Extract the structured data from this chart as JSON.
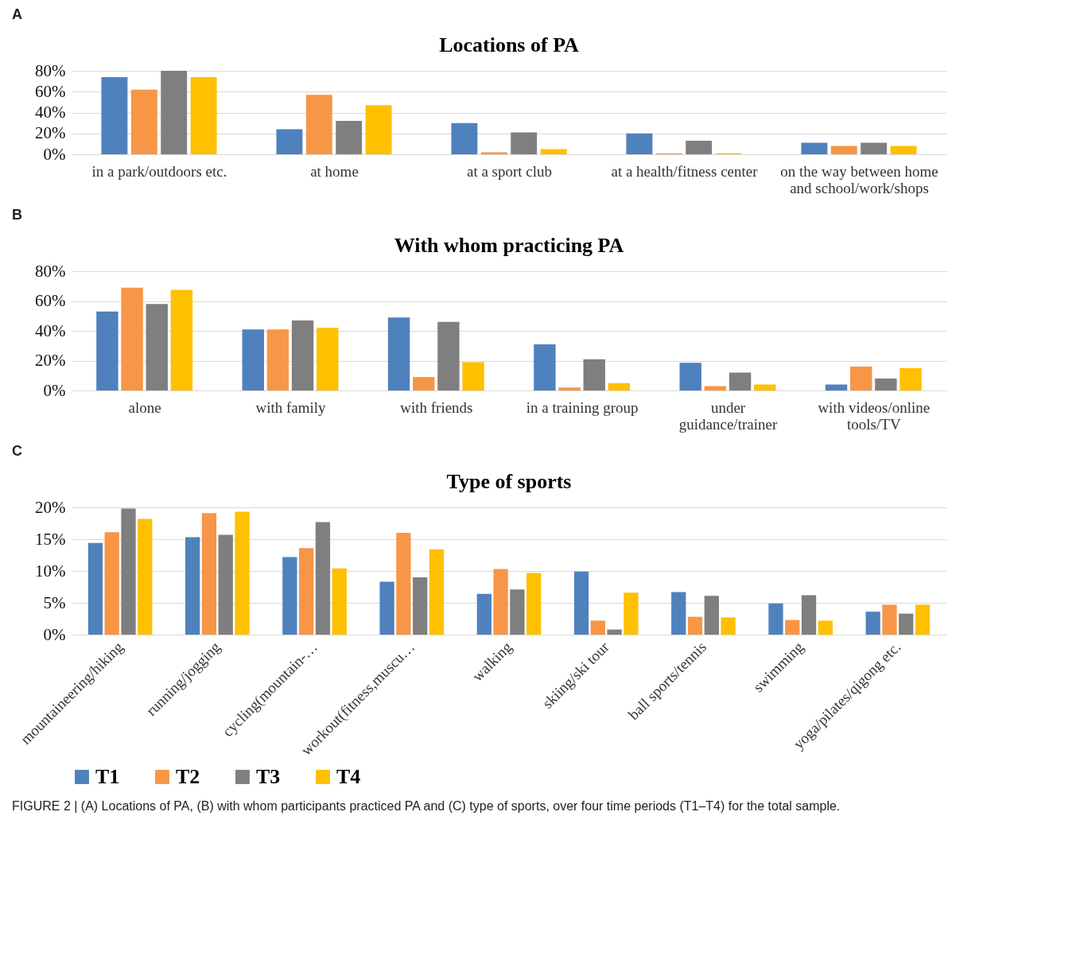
{
  "chart_data": [
    {
      "type": "bar",
      "title": "Locations of PA",
      "annotations": [
        "A"
      ],
      "categories": [
        "in a park/outdoors etc.",
        "at home",
        "at a sport club",
        "at a health/fitness center",
        "on the way between home and school/work/shops"
      ],
      "series": [
        {
          "color": "#4f81bd",
          "values": [
            74,
            24,
            30,
            20,
            11
          ]
        },
        {
          "color": "#f79646",
          "values": [
            62,
            57,
            2,
            1,
            8
          ]
        },
        {
          "color": "#7f7f7f",
          "values": [
            80,
            32,
            21,
            13,
            11
          ]
        },
        {
          "color": "#ffc000",
          "values": [
            74,
            47,
            5,
            1,
            8
          ]
        }
      ],
      "ylim": [
        0,
        80
      ],
      "yticks": [
        {
          "value": 0,
          "label": "0%"
        },
        {
          "value": 20,
          "label": "20%"
        },
        {
          "value": 40,
          "label": "40%"
        },
        {
          "value": 60,
          "label": "60%"
        },
        {
          "value": 80,
          "label": "80%"
        }
      ],
      "grid": "y"
    },
    {
      "type": "bar",
      "title": "With whom practicing PA",
      "annotations": [
        "B"
      ],
      "categories": [
        "alone",
        "with family",
        "with friends",
        "in a training group",
        "under guidance/trainer",
        "with videos/online tools/TV"
      ],
      "series": [
        {
          "color": "#4f81bd",
          "values": [
            53,
            41,
            49,
            31,
            18.5,
            4
          ]
        },
        {
          "color": "#f79646",
          "values": [
            69,
            41,
            9,
            2,
            3,
            16
          ]
        },
        {
          "color": "#7f7f7f",
          "values": [
            58,
            47,
            46,
            21,
            12,
            8
          ]
        },
        {
          "color": "#ffc000",
          "values": [
            67.5,
            42,
            19,
            5,
            4,
            15
          ]
        }
      ],
      "ylim": [
        0,
        80
      ],
      "yticks": [
        {
          "value": 0,
          "label": "0%"
        },
        {
          "value": 20,
          "label": "20%"
        },
        {
          "value": 40,
          "label": "40%"
        },
        {
          "value": 60,
          "label": "60%"
        },
        {
          "value": 80,
          "label": "80%"
        }
      ],
      "grid": "y"
    },
    {
      "type": "bar",
      "title": "Type of sports",
      "annotations": [
        "C",
        "FIGURE 2 | (A) Locations of PA, (B) with whom participants practiced PA and (C) type of sports, over four time periods (T1–T4) for the total sample."
      ],
      "categories": [
        "mountaineering/hiking",
        "running/jogging",
        "cycling(mountain-…",
        "workout(fitness,muscu…",
        "walking",
        "skiing/ski tour",
        "ball sports/tennis",
        "swimming",
        "yoga/pilates/qigong etc."
      ],
      "series": [
        {
          "name": "T1",
          "color": "#4f81bd",
          "values": [
            14.4,
            15.3,
            12.2,
            8.3,
            6.4,
            9.9,
            6.7,
            4.9,
            3.6
          ]
        },
        {
          "name": "T2",
          "color": "#f79646",
          "values": [
            16.1,
            19.1,
            13.6,
            16.0,
            10.3,
            2.2,
            2.8,
            2.3,
            4.7
          ]
        },
        {
          "name": "T3",
          "color": "#7f7f7f",
          "values": [
            19.8,
            15.7,
            17.7,
            9.0,
            7.1,
            0.8,
            6.1,
            6.2,
            3.3
          ]
        },
        {
          "name": "T4",
          "color": "#ffc000",
          "values": [
            18.2,
            19.3,
            10.4,
            13.4,
            9.7,
            6.6,
            2.7,
            2.2,
            4.7
          ]
        }
      ],
      "ylim": [
        0,
        20
      ],
      "yticks": [
        {
          "value": 0,
          "label": "0%"
        },
        {
          "value": 5,
          "label": "5%"
        },
        {
          "value": 10,
          "label": "10%"
        },
        {
          "value": 15,
          "label": "15%"
        },
        {
          "value": 20,
          "label": "20%"
        }
      ],
      "grid": "y",
      "legend": "bottom"
    }
  ]
}
